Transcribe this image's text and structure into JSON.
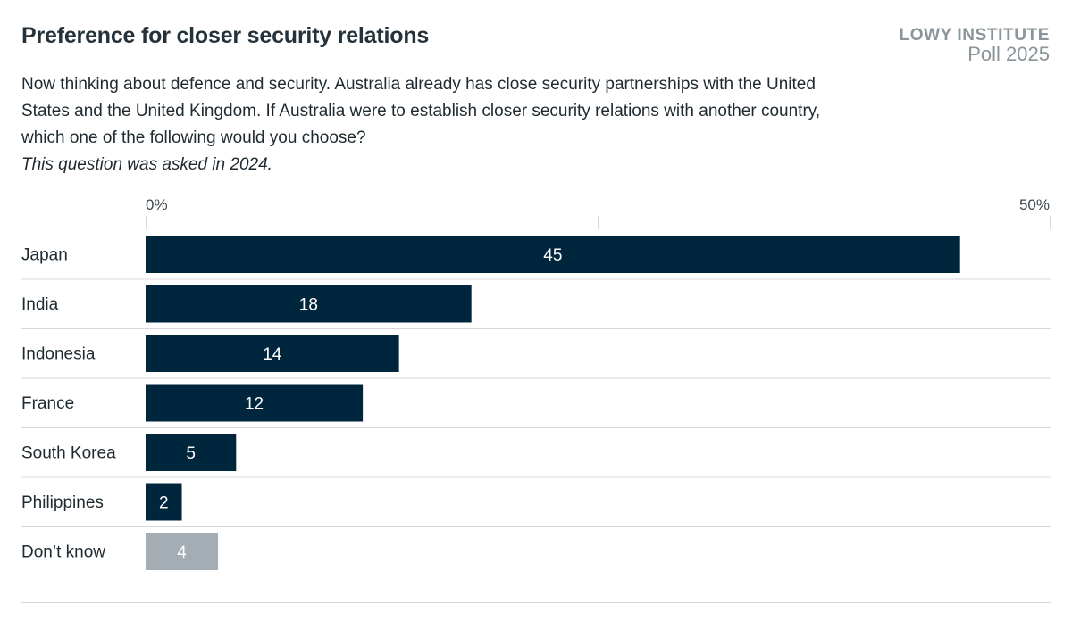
{
  "header": {
    "title": "Preference for closer security relations",
    "brand_name": "LOWY INSTITUTE",
    "brand_poll": "Poll 2025"
  },
  "question": {
    "text": "Now thinking about defence and security. Australia already has close security partnerships with the United States and the United Kingdom. If Australia were to establish closer security relations with another country, which one of the following would you choose?",
    "note": "This question was asked in 2024."
  },
  "colors": {
    "bar": "#00263e",
    "bar_muted": "#a3adb3",
    "grid": "#d4d8db",
    "label_on_bar": "#ffffff"
  },
  "chart_data": {
    "type": "bar",
    "orientation": "horizontal",
    "categories": [
      "Japan",
      "India",
      "Indonesia",
      "France",
      "South Korea",
      "Philippines",
      "Don’t know"
    ],
    "values": [
      45,
      18,
      14,
      12,
      5,
      2,
      4
    ],
    "muted": [
      false,
      false,
      false,
      false,
      false,
      false,
      true
    ],
    "x_ticks": [
      "0%",
      "50%"
    ],
    "xlim": [
      0,
      50
    ],
    "grid": true,
    "data_labels": true
  }
}
